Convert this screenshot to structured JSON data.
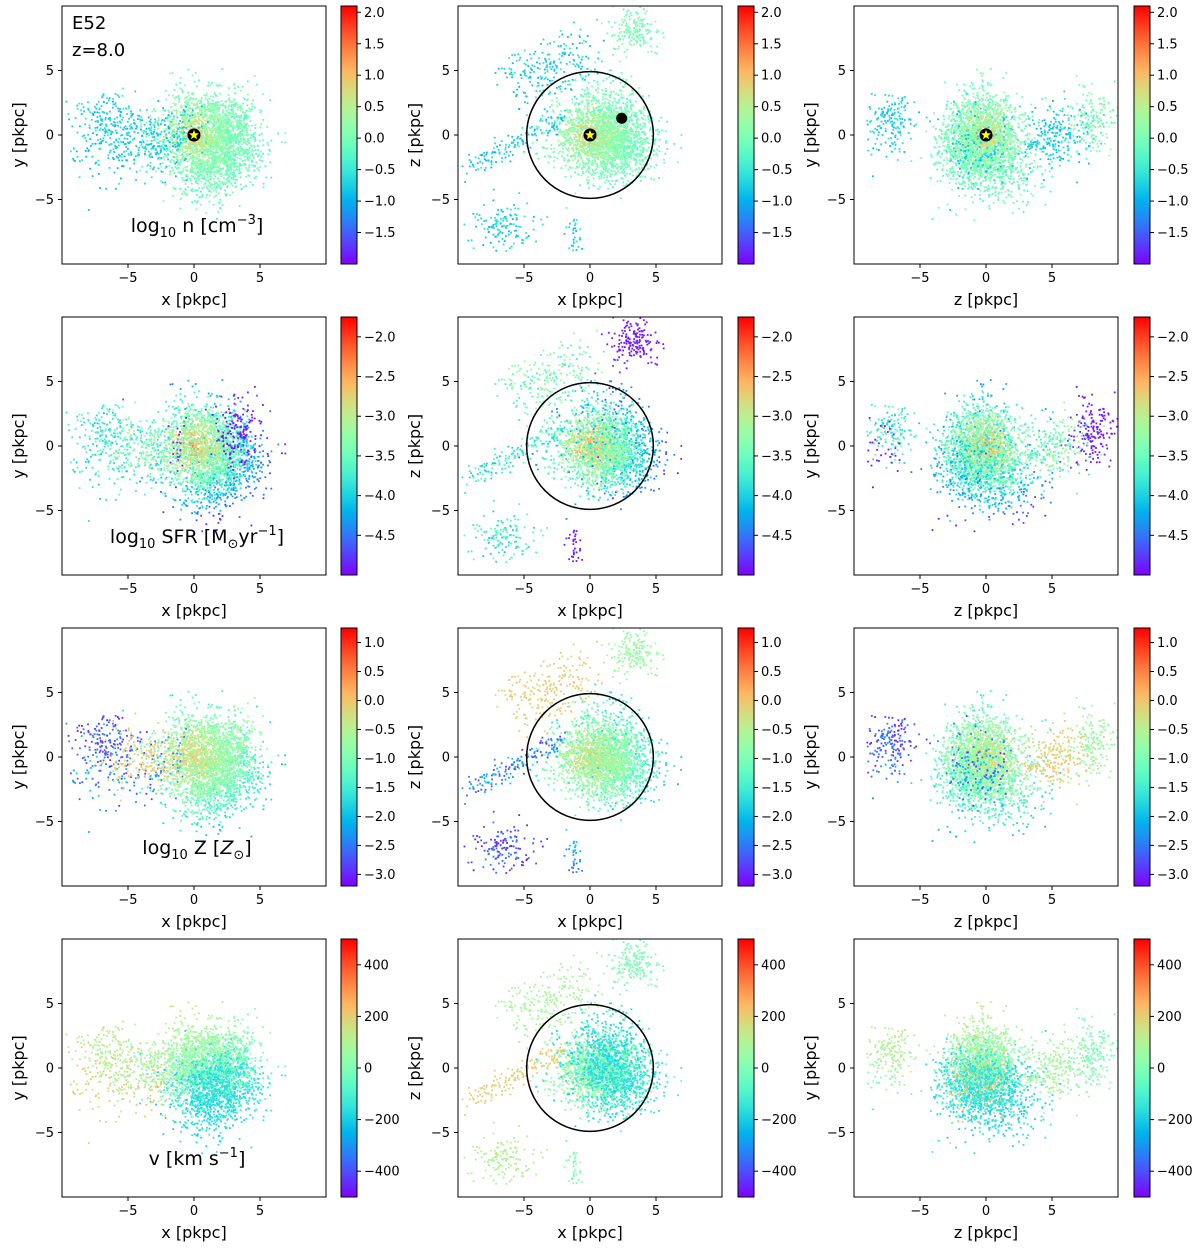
{
  "figure": {
    "run_label": "E52",
    "redshift_label": "z=8.0"
  },
  "chart_data": {
    "type": "scatter",
    "description_rows": [
      "density",
      "sfr",
      "metallicity",
      "velocity"
    ],
    "columns": [
      {
        "key": "xy",
        "xlabel": "x [pkpc]",
        "ylabel": "y [pkpc]"
      },
      {
        "key": "xz",
        "xlabel": "x [pkpc]",
        "ylabel": "z [pkpc]"
      },
      {
        "key": "zy",
        "xlabel": "z [pkpc]",
        "ylabel": "y [pkpc]"
      }
    ],
    "xlim": [
      -10,
      10
    ],
    "ylim": [
      -10,
      10
    ],
    "xticks_col1": [
      -5,
      0,
      5
    ],
    "xticks_col2": [
      -5,
      0,
      5
    ],
    "xticks_col3": [
      -5,
      0,
      5
    ],
    "yticks": [
      -5,
      0,
      5
    ],
    "circle_radius_pkpc": 4.8,
    "rows": [
      {
        "name": "density",
        "quantity_label": "log10 n [cm^-3]",
        "quantity_parts": {
          "prefix": "log",
          "sub": "10",
          "mid": " n [cm",
          "sup": "−3",
          "suffix": "]"
        },
        "colorbar_range": [
          -2.0,
          2.1
        ],
        "colorbar_ticks": [
          "2.0",
          "1.5",
          "1.0",
          "0.5",
          "0.0",
          "−0.5",
          "−1.0",
          "−1.5"
        ],
        "colorbar_tick_values": [
          2.0,
          1.5,
          1.0,
          0.5,
          0.0,
          -0.5,
          -1.0,
          -1.5
        ],
        "markers": {
          "star_at": [
            0,
            0
          ],
          "black_dot_xz": [
            2.4,
            1.3
          ]
        }
      },
      {
        "name": "sfr",
        "quantity_label": "log10 SFR [M⊙yr^-1]",
        "quantity_parts": {
          "prefix": "log",
          "sub": "10",
          "mid": " SFR [M",
          "sub2": "⊙",
          "mid2": "yr",
          "sup": "−1",
          "suffix": "]"
        },
        "colorbar_range": [
          -5.0,
          -1.75
        ],
        "colorbar_ticks": [
          "−2.0",
          "−2.5",
          "−3.0",
          "−3.5",
          "−4.0",
          "−4.5"
        ],
        "colorbar_tick_values": [
          -2.0,
          -2.5,
          -3.0,
          -3.5,
          -4.0,
          -4.5
        ]
      },
      {
        "name": "metallicity",
        "quantity_label": "log10 Z [Z⊙]",
        "quantity_parts": {
          "prefix": "log",
          "sub": "10",
          "mid": " Z [",
          "italic": "Z",
          "sub2": "⊙",
          "suffix": "]"
        },
        "colorbar_range": [
          -3.2,
          1.25
        ],
        "colorbar_ticks": [
          "1.0",
          "0.5",
          "0.0",
          "−0.5",
          "−1.0",
          "−1.5",
          "−2.0",
          "−2.5",
          "−3.0"
        ],
        "colorbar_tick_values": [
          1.0,
          0.5,
          0.0,
          -0.5,
          -1.0,
          -1.5,
          -2.0,
          -2.5,
          -3.0
        ]
      },
      {
        "name": "velocity",
        "quantity_label": "v [km s^-1]",
        "quantity_parts": {
          "prefix": "v [km s",
          "sup": "−1",
          "suffix": "]"
        },
        "colorbar_range": [
          -500,
          500
        ],
        "colorbar_ticks": [
          "400",
          "200",
          "0",
          "−200",
          "−400"
        ],
        "colorbar_tick_values": [
          400,
          200,
          0,
          -200,
          -400
        ]
      }
    ]
  },
  "colors": {
    "circle": "#000000",
    "star_fill": "#ffff00",
    "star_edge": "#000000",
    "colormap": "rainbow"
  }
}
